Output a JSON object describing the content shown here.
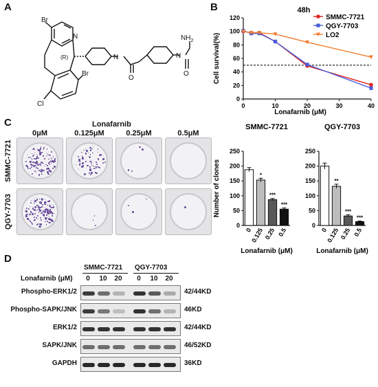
{
  "panels": {
    "A": "A",
    "B": "B",
    "C": "C",
    "D": "D"
  },
  "panelA": {
    "atoms": {
      "br1": "Br",
      "n": "N",
      "r": "(R)",
      "o": "O",
      "n2": "N",
      "n3": "N",
      "nh2": "NH",
      "nh2_sub": "2",
      "o2": "O",
      "br2": "Br",
      "cl": "Cl"
    }
  },
  "chart_data": [
    {
      "type": "line",
      "title": "48h",
      "xlabel": "Lonafarnib (μM)",
      "ylabel": "Cell survival(%)",
      "xlim": [
        0,
        40
      ],
      "ylim": [
        0,
        120
      ],
      "xticks": [
        0,
        10,
        20,
        30,
        40
      ],
      "yticks": [
        0,
        20,
        40,
        60,
        80,
        100,
        120
      ],
      "reference_line_y": 50,
      "legend_position": "top-right",
      "x": [
        0,
        2.5,
        5,
        10,
        20,
        40
      ],
      "series": [
        {
          "name": "SMMC-7721",
          "color": "#e0211c",
          "marker": "circle",
          "values": [
            100,
            98,
            98,
            85,
            49,
            21
          ]
        },
        {
          "name": "QGY-7703",
          "color": "#4a5bd9",
          "marker": "square",
          "values": [
            101,
            97,
            97,
            85,
            51,
            16
          ]
        },
        {
          "name": "LO2",
          "color": "#f07d2f",
          "marker": "triangle-down",
          "values": [
            100,
            98,
            98,
            96,
            84,
            62
          ]
        }
      ]
    },
    {
      "type": "bar",
      "title": "SMMC-7721",
      "xlabel": "Lonafarnib (μM)",
      "ylabel": "Number of clones",
      "categories": [
        "0",
        "0.125",
        "0.25",
        "0.5"
      ],
      "values": [
        188,
        153,
        87,
        55
      ],
      "errors": [
        7,
        6,
        4,
        4
      ],
      "significance": [
        "",
        "*",
        "***",
        "***"
      ],
      "fills": [
        "#ffffff",
        "#bdbdbd",
        "#595959",
        "#111111"
      ],
      "ylim": [
        0,
        250
      ],
      "yticks": [
        0,
        50,
        100,
        150,
        200,
        250
      ]
    },
    {
      "type": "bar",
      "title": "QGY-7703",
      "xlabel": "Lonafarnib (μM)",
      "ylabel": "",
      "categories": [
        "0",
        "0.125",
        "0.25",
        "0.5"
      ],
      "values": [
        200,
        132,
        32,
        13
      ],
      "errors": [
        10,
        7,
        4,
        2
      ],
      "significance": [
        "",
        "**",
        "***",
        "***"
      ],
      "fills": [
        "#ffffff",
        "#bdbdbd",
        "#595959",
        "#111111"
      ],
      "ylim": [
        0,
        250
      ],
      "yticks": [
        0,
        50,
        100,
        150,
        200,
        250
      ]
    }
  ],
  "panelC": {
    "treatment_label": "Lonafarnib",
    "columns": [
      "0μM",
      "0.125μM",
      "0.25μM",
      "0.5μM"
    ],
    "rows": [
      "SMMC-7721",
      "QGY-7703"
    ],
    "colony_density": [
      [
        0.85,
        0.5,
        0.03,
        0.0
      ],
      [
        0.95,
        0.02,
        0.02,
        0.01
      ]
    ]
  },
  "panelD": {
    "treatment_label": "Lonafarnib (μM)",
    "groups": [
      "SMMC-7721",
      "QGY-7703"
    ],
    "doses": [
      "0",
      "10",
      "20",
      "0",
      "10",
      "20"
    ],
    "blots": [
      {
        "name": "Phospho-ERK1/2",
        "size": "42/44KD"
      },
      {
        "name": "Phospho-SAPK/JNK",
        "size": "46KD"
      },
      {
        "name": "ERK1/2",
        "size": "42/44KD"
      },
      {
        "name": "SAPK/JNK",
        "size": "46/52KD"
      },
      {
        "name": "GAPDH",
        "size": "36KD"
      }
    ]
  }
}
